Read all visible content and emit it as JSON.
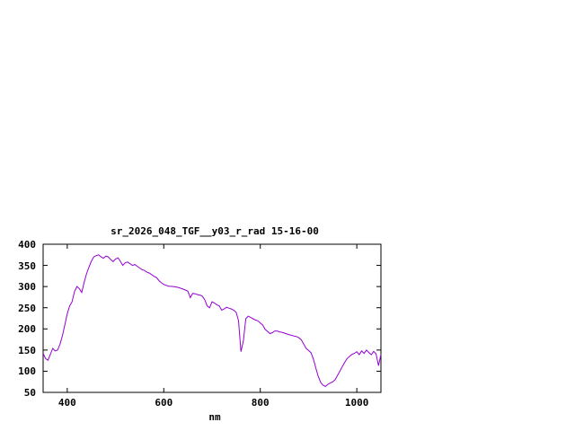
{
  "title": "sr_2026_048_TGF__y03_r_rad 15-16-00",
  "chart_data": {
    "type": "line",
    "title": "sr_2026_048_TGF__y03_r_rad 15-16-00",
    "xlabel": "nm",
    "ylabel": "",
    "xlim": [
      350,
      1050
    ],
    "ylim": [
      50,
      400
    ],
    "xticks": [
      400,
      600,
      800,
      1000
    ],
    "yticks": [
      50,
      100,
      150,
      200,
      250,
      300,
      350,
      400
    ],
    "grid": false,
    "legend": "none",
    "line_color": "#9400d3",
    "border_color": "#000000",
    "series": [
      {
        "name": "sr_2026_048_TGF__y03_r_rad",
        "points": [
          [
            350,
            142
          ],
          [
            355,
            130
          ],
          [
            360,
            126
          ],
          [
            365,
            140
          ],
          [
            370,
            154
          ],
          [
            375,
            148
          ],
          [
            380,
            150
          ],
          [
            385,
            164
          ],
          [
            390,
            184
          ],
          [
            395,
            210
          ],
          [
            400,
            236
          ],
          [
            405,
            254
          ],
          [
            410,
            264
          ],
          [
            415,
            288
          ],
          [
            420,
            300
          ],
          [
            425,
            295
          ],
          [
            430,
            286
          ],
          [
            435,
            310
          ],
          [
            440,
            330
          ],
          [
            445,
            346
          ],
          [
            450,
            360
          ],
          [
            455,
            370
          ],
          [
            460,
            373
          ],
          [
            465,
            375
          ],
          [
            470,
            370
          ],
          [
            475,
            367
          ],
          [
            480,
            372
          ],
          [
            485,
            370
          ],
          [
            490,
            364
          ],
          [
            495,
            359
          ],
          [
            500,
            365
          ],
          [
            505,
            368
          ],
          [
            510,
            360
          ],
          [
            515,
            350
          ],
          [
            520,
            356
          ],
          [
            525,
            358
          ],
          [
            530,
            354
          ],
          [
            535,
            350
          ],
          [
            540,
            352
          ],
          [
            545,
            348
          ],
          [
            550,
            344
          ],
          [
            555,
            340
          ],
          [
            560,
            338
          ],
          [
            565,
            334
          ],
          [
            570,
            332
          ],
          [
            575,
            328
          ],
          [
            580,
            324
          ],
          [
            585,
            321
          ],
          [
            590,
            314
          ],
          [
            595,
            309
          ],
          [
            600,
            305
          ],
          [
            610,
            301
          ],
          [
            620,
            300
          ],
          [
            630,
            298
          ],
          [
            640,
            294
          ],
          [
            650,
            289
          ],
          [
            655,
            274
          ],
          [
            660,
            284
          ],
          [
            665,
            283
          ],
          [
            670,
            281
          ],
          [
            675,
            280
          ],
          [
            680,
            277
          ],
          [
            685,
            269
          ],
          [
            690,
            254
          ],
          [
            695,
            250
          ],
          [
            700,
            264
          ],
          [
            705,
            261
          ],
          [
            710,
            257
          ],
          [
            715,
            254
          ],
          [
            720,
            244
          ],
          [
            725,
            247
          ],
          [
            730,
            251
          ],
          [
            735,
            249
          ],
          [
            740,
            247
          ],
          [
            745,
            244
          ],
          [
            750,
            239
          ],
          [
            755,
            219
          ],
          [
            760,
            146
          ],
          [
            765,
            172
          ],
          [
            770,
            224
          ],
          [
            775,
            230
          ],
          [
            780,
            227
          ],
          [
            785,
            224
          ],
          [
            790,
            221
          ],
          [
            795,
            219
          ],
          [
            800,
            214
          ],
          [
            805,
            209
          ],
          [
            810,
            199
          ],
          [
            815,
            194
          ],
          [
            820,
            189
          ],
          [
            825,
            191
          ],
          [
            830,
            195
          ],
          [
            835,
            195
          ],
          [
            840,
            193
          ],
          [
            845,
            192
          ],
          [
            850,
            190
          ],
          [
            855,
            188
          ],
          [
            860,
            186
          ],
          [
            865,
            185
          ],
          [
            870,
            183
          ],
          [
            875,
            182
          ],
          [
            880,
            179
          ],
          [
            885,
            174
          ],
          [
            890,
            164
          ],
          [
            895,
            154
          ],
          [
            900,
            149
          ],
          [
            905,
            144
          ],
          [
            910,
            129
          ],
          [
            915,
            108
          ],
          [
            920,
            88
          ],
          [
            925,
            74
          ],
          [
            930,
            67
          ],
          [
            935,
            64
          ],
          [
            940,
            69
          ],
          [
            945,
            72
          ],
          [
            950,
            75
          ],
          [
            955,
            80
          ],
          [
            960,
            90
          ],
          [
            965,
            100
          ],
          [
            970,
            111
          ],
          [
            975,
            121
          ],
          [
            980,
            130
          ],
          [
            985,
            135
          ],
          [
            990,
            140
          ],
          [
            995,
            142
          ],
          [
            1000,
            146
          ],
          [
            1005,
            139
          ],
          [
            1010,
            148
          ],
          [
            1015,
            142
          ],
          [
            1020,
            150
          ],
          [
            1025,
            144
          ],
          [
            1030,
            139
          ],
          [
            1035,
            147
          ],
          [
            1040,
            141
          ],
          [
            1045,
            113
          ],
          [
            1050,
            140
          ]
        ]
      }
    ]
  }
}
